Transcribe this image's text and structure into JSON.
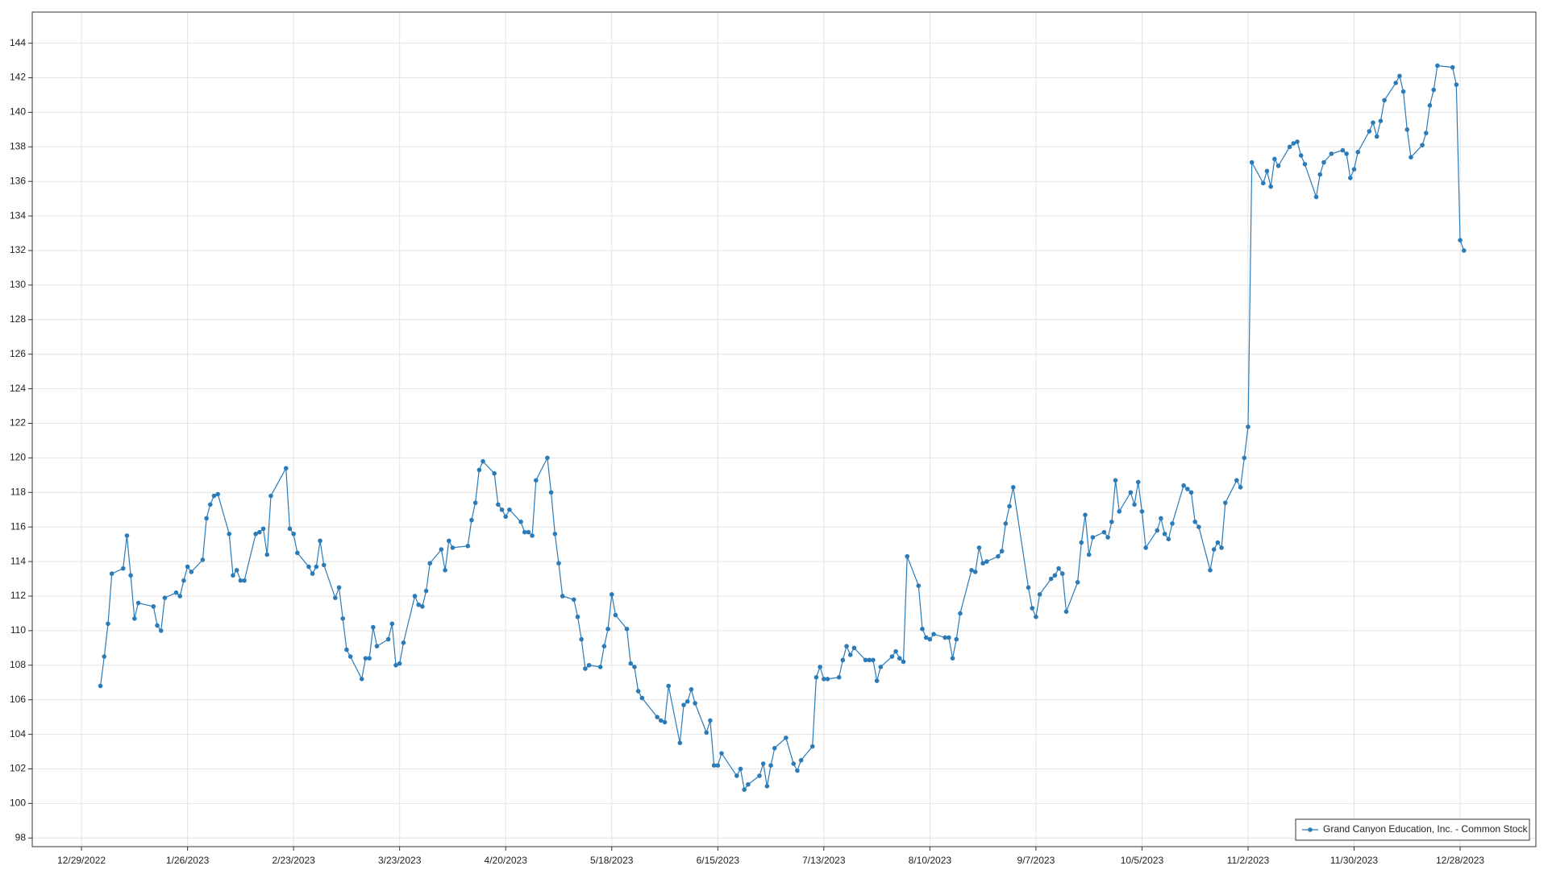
{
  "chart_data": {
    "type": "line",
    "x": [
      "1/3/2023",
      "1/4/2023",
      "1/5/2023",
      "1/6/2023",
      "1/9/2023",
      "1/10/2023",
      "1/11/2023",
      "1/12/2023",
      "1/13/2023",
      "1/17/2023",
      "1/18/2023",
      "1/19/2023",
      "1/20/2023",
      "1/23/2023",
      "1/24/2023",
      "1/25/2023",
      "1/26/2023",
      "1/27/2023",
      "1/30/2023",
      "1/31/2023",
      "2/1/2023",
      "2/2/2023",
      "2/3/2023",
      "2/6/2023",
      "2/7/2023",
      "2/8/2023",
      "2/9/2023",
      "2/10/2023",
      "2/13/2023",
      "2/14/2023",
      "2/15/2023",
      "2/16/2023",
      "2/17/2023",
      "2/21/2023",
      "2/22/2023",
      "2/23/2023",
      "2/24/2023",
      "2/27/2023",
      "2/28/2023",
      "3/1/2023",
      "3/2/2023",
      "3/3/2023",
      "3/6/2023",
      "3/7/2023",
      "3/8/2023",
      "3/9/2023",
      "3/10/2023",
      "3/13/2023",
      "3/14/2023",
      "3/15/2023",
      "3/16/2023",
      "3/17/2023",
      "3/20/2023",
      "3/21/2023",
      "3/22/2023",
      "3/23/2023",
      "3/24/2023",
      "3/27/2023",
      "3/28/2023",
      "3/29/2023",
      "3/30/2023",
      "3/31/2023",
      "4/3/2023",
      "4/4/2023",
      "4/5/2023",
      "4/6/2023",
      "4/10/2023",
      "4/11/2023",
      "4/12/2023",
      "4/13/2023",
      "4/14/2023",
      "4/17/2023",
      "4/18/2023",
      "4/19/2023",
      "4/20/2023",
      "4/21/2023",
      "4/24/2023",
      "4/25/2023",
      "4/26/2023",
      "4/27/2023",
      "4/28/2023",
      "5/1/2023",
      "5/2/2023",
      "5/3/2023",
      "5/4/2023",
      "5/5/2023",
      "5/8/2023",
      "5/9/2023",
      "5/10/2023",
      "5/11/2023",
      "5/12/2023",
      "5/15/2023",
      "5/16/2023",
      "5/17/2023",
      "5/18/2023",
      "5/19/2023",
      "5/22/2023",
      "5/23/2023",
      "5/24/2023",
      "5/25/2023",
      "5/26/2023",
      "5/30/2023",
      "5/31/2023",
      "6/1/2023",
      "6/2/2023",
      "6/5/2023",
      "6/6/2023",
      "6/7/2023",
      "6/8/2023",
      "6/9/2023",
      "6/12/2023",
      "6/13/2023",
      "6/14/2023",
      "6/15/2023",
      "6/16/2023",
      "6/20/2023",
      "6/21/2023",
      "6/22/2023",
      "6/23/2023",
      "6/26/2023",
      "6/27/2023",
      "6/28/2023",
      "6/29/2023",
      "6/30/2023",
      "7/3/2023",
      "7/5/2023",
      "7/6/2023",
      "7/7/2023",
      "7/10/2023",
      "7/11/2023",
      "7/12/2023",
      "7/13/2023",
      "7/14/2023",
      "7/17/2023",
      "7/18/2023",
      "7/19/2023",
      "7/20/2023",
      "7/21/2023",
      "7/24/2023",
      "7/25/2023",
      "7/26/2023",
      "7/27/2023",
      "7/28/2023",
      "7/31/2023",
      "8/1/2023",
      "8/2/2023",
      "8/3/2023",
      "8/4/2023",
      "8/7/2023",
      "8/8/2023",
      "8/9/2023",
      "8/10/2023",
      "8/11/2023",
      "8/14/2023",
      "8/15/2023",
      "8/16/2023",
      "8/17/2023",
      "8/18/2023",
      "8/21/2023",
      "8/22/2023",
      "8/23/2023",
      "8/24/2023",
      "8/25/2023",
      "8/28/2023",
      "8/29/2023",
      "8/30/2023",
      "8/31/2023",
      "9/1/2023",
      "9/5/2023",
      "9/6/2023",
      "9/7/2023",
      "9/8/2023",
      "9/11/2023",
      "9/12/2023",
      "9/13/2023",
      "9/14/2023",
      "9/15/2023",
      "9/18/2023",
      "9/19/2023",
      "9/20/2023",
      "9/21/2023",
      "9/22/2023",
      "9/25/2023",
      "9/26/2023",
      "9/27/2023",
      "9/28/2023",
      "9/29/2023",
      "10/2/2023",
      "10/3/2023",
      "10/4/2023",
      "10/5/2023",
      "10/6/2023",
      "10/9/2023",
      "10/10/2023",
      "10/11/2023",
      "10/12/2023",
      "10/13/2023",
      "10/16/2023",
      "10/17/2023",
      "10/18/2023",
      "10/19/2023",
      "10/20/2023",
      "10/23/2023",
      "10/24/2023",
      "10/25/2023",
      "10/26/2023",
      "10/27/2023",
      "10/30/2023",
      "10/31/2023",
      "11/1/2023",
      "11/2/2023",
      "11/3/2023",
      "11/6/2023",
      "11/7/2023",
      "11/8/2023",
      "11/9/2023",
      "11/10/2023",
      "11/13/2023",
      "11/14/2023",
      "11/15/2023",
      "11/16/2023",
      "11/17/2023",
      "11/20/2023",
      "11/21/2023",
      "11/22/2023",
      "11/24/2023",
      "11/27/2023",
      "11/28/2023",
      "11/29/2023",
      "11/30/2023",
      "12/1/2023",
      "12/4/2023",
      "12/5/2023",
      "12/6/2023",
      "12/7/2023",
      "12/8/2023",
      "12/11/2023",
      "12/12/2023",
      "12/13/2023",
      "12/14/2023",
      "12/15/2023",
      "12/18/2023",
      "12/19/2023",
      "12/20/2023",
      "12/21/2023",
      "12/22/2023",
      "12/26/2023",
      "12/27/2023",
      "12/28/2023",
      "12/29/2023"
    ],
    "series": [
      {
        "name": "Grand Canyon Education, Inc. - Common Stock",
        "color": "#2b7bb9",
        "values": [
          106.8,
          108.5,
          110.4,
          113.3,
          113.6,
          115.5,
          113.2,
          110.7,
          111.6,
          111.4,
          110.3,
          110.0,
          111.9,
          112.2,
          112.0,
          112.9,
          113.7,
          113.4,
          114.1,
          116.5,
          117.3,
          117.8,
          117.9,
          115.6,
          113.2,
          113.5,
          112.9,
          112.9,
          115.6,
          115.7,
          115.9,
          114.4,
          117.8,
          119.4,
          115.9,
          115.6,
          114.5,
          113.7,
          113.3,
          113.7,
          115.2,
          113.8,
          111.9,
          112.5,
          110.7,
          108.9,
          108.5,
          107.2,
          108.4,
          108.4,
          110.2,
          109.1,
          109.5,
          110.4,
          108.0,
          108.1,
          109.3,
          112.0,
          111.5,
          111.4,
          112.3,
          113.9,
          114.7,
          113.5,
          115.2,
          114.8,
          114.9,
          116.4,
          117.4,
          119.3,
          119.8,
          119.1,
          117.3,
          117.0,
          116.6,
          117.0,
          116.3,
          115.7,
          115.7,
          115.5,
          118.7,
          120.0,
          118.0,
          115.6,
          113.9,
          112.0,
          111.8,
          110.8,
          109.5,
          107.8,
          108.0,
          107.9,
          109.1,
          110.1,
          112.1,
          110.9,
          110.1,
          108.1,
          107.9,
          106.5,
          106.1,
          105.0,
          104.8,
          104.7,
          106.8,
          103.5,
          105.7,
          105.9,
          106.6,
          105.8,
          104.1,
          104.8,
          102.2,
          102.2,
          102.9,
          101.6,
          102.0,
          100.8,
          101.1,
          101.6,
          102.3,
          101.0,
          102.2,
          103.2,
          103.8,
          102.3,
          101.9,
          102.5,
          103.3,
          107.3,
          107.9,
          107.2,
          107.2,
          107.3,
          108.3,
          109.1,
          108.6,
          109.0,
          108.3,
          108.3,
          108.3,
          107.1,
          107.9,
          108.5,
          108.8,
          108.4,
          108.2,
          114.3,
          112.6,
          110.1,
          109.6,
          109.5,
          109.8,
          109.6,
          109.6,
          108.4,
          109.5,
          111.0,
          113.5,
          113.4,
          114.8,
          113.9,
          114.0,
          114.3,
          114.6,
          116.2,
          117.2,
          118.3,
          112.5,
          111.3,
          110.8,
          112.1,
          113.0,
          113.2,
          113.6,
          113.3,
          111.1,
          112.8,
          115.1,
          116.7,
          114.4,
          115.4,
          115.7,
          115.4,
          116.3,
          118.7,
          116.9,
          118.0,
          117.3,
          118.6,
          116.9,
          114.8,
          115.8,
          116.5,
          115.6,
          115.3,
          116.2,
          118.4,
          118.2,
          118.0,
          116.3,
          116.0,
          113.5,
          114.7,
          115.1,
          114.8,
          117.4,
          118.7,
          118.3,
          120.0,
          121.8,
          137.1,
          135.9,
          136.6,
          135.7,
          137.3,
          136.9,
          138.0,
          138.2,
          138.3,
          137.5,
          137.0,
          135.1,
          136.4,
          137.1,
          137.6,
          137.8,
          137.6,
          136.2,
          136.7,
          137.7,
          138.9,
          139.4,
          138.6,
          139.5,
          140.7,
          141.7,
          142.1,
          141.2,
          139.0,
          137.4,
          138.1,
          138.8,
          140.4,
          141.3,
          142.7,
          142.6,
          141.6,
          132.6,
          132.0
        ]
      }
    ],
    "xlim": [
      "12/16/2022",
      "1/17/2024"
    ],
    "xticks": [
      "12/29/2022",
      "1/26/2023",
      "2/23/2023",
      "3/23/2023",
      "4/20/2023",
      "5/18/2023",
      "6/15/2023",
      "7/13/2023",
      "8/10/2023",
      "9/7/2023",
      "10/5/2023",
      "11/2/2023",
      "11/30/2023",
      "12/28/2023"
    ],
    "ylim": [
      97.5,
      145.8
    ],
    "yticks": [
      98,
      100,
      102,
      104,
      106,
      108,
      110,
      112,
      114,
      116,
      118,
      120,
      122,
      124,
      126,
      128,
      130,
      132,
      134,
      136,
      138,
      140,
      142,
      144
    ],
    "grid": true,
    "legend": "lower right"
  }
}
